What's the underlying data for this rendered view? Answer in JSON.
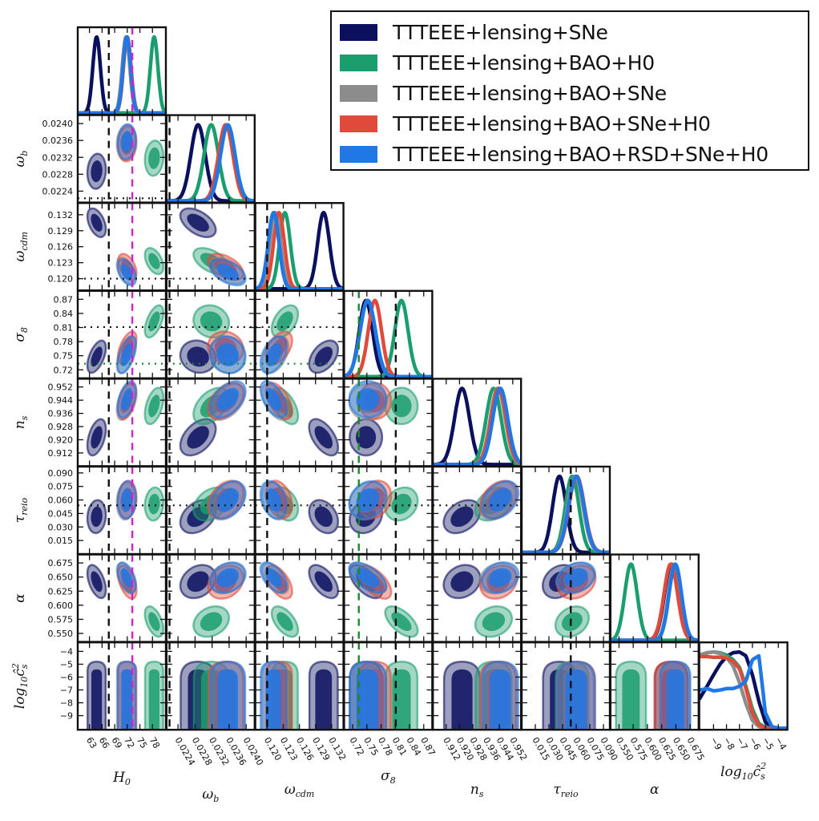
{
  "chart_data": {
    "type": "triangle-corner-plot",
    "title": "",
    "grid": false,
    "legend_position": "top-right",
    "parameters": [
      {
        "key": "H0",
        "label": "H",
        "sub": "0",
        "range": [
          60.2,
          81.2
        ],
        "ticks": [
          63,
          66,
          69,
          72,
          75,
          78
        ],
        "tick_labels": [
          "63",
          "66",
          "69",
          "72",
          "75",
          "78"
        ]
      },
      {
        "key": "omega_b",
        "label": "ω",
        "sub": "b",
        "range": [
          0.02213,
          0.0242
        ],
        "ticks": [
          0.0224,
          0.0228,
          0.0232,
          0.0236,
          0.024
        ],
        "tick_labels": [
          "0.0224",
          "0.0228",
          "0.0232",
          "0.0236",
          "0.0240"
        ]
      },
      {
        "key": "omega_cdm",
        "label": "ω",
        "sub": "cdm",
        "range": [
          0.1178,
          0.1342
        ],
        "ticks": [
          0.12,
          0.123,
          0.126,
          0.129,
          0.132
        ],
        "tick_labels": [
          "0.120",
          "0.123",
          "0.126",
          "0.129",
          "0.132"
        ]
      },
      {
        "key": "sigma8",
        "label": "σ",
        "sub": "8",
        "range": [
          0.702,
          0.888
        ],
        "ticks": [
          0.72,
          0.75,
          0.78,
          0.81,
          0.84,
          0.87
        ],
        "tick_labels": [
          "0.72",
          "0.75",
          "0.78",
          "0.81",
          "0.84",
          "0.87"
        ]
      },
      {
        "key": "n_s",
        "label": "n",
        "sub": "s",
        "range": [
          0.904,
          0.957
        ],
        "ticks": [
          0.912,
          0.92,
          0.928,
          0.936,
          0.944,
          0.952
        ],
        "tick_labels": [
          "0.912",
          "0.920",
          "0.928",
          "0.936",
          "0.944",
          "0.952"
        ]
      },
      {
        "key": "tau_reio",
        "label": "τ",
        "sub": "reio",
        "range": [
          0.0,
          0.097
        ],
        "ticks": [
          0.015,
          0.03,
          0.045,
          0.06,
          0.075,
          0.09
        ],
        "tick_labels": [
          "0.015",
          "0.030",
          "0.045",
          "0.060",
          "0.075",
          "0.090"
        ]
      },
      {
        "key": "alpha",
        "label": "α",
        "sub": "",
        "range": [
          0.535,
          0.69
        ],
        "ticks": [
          0.55,
          0.575,
          0.6,
          0.625,
          0.65,
          0.675
        ],
        "tick_labels": [
          "0.550",
          "0.575",
          "0.600",
          "0.625",
          "0.650",
          "0.675"
        ]
      },
      {
        "key": "log10_cs2",
        "label": "log",
        "sub": "10",
        "suffix": "ĉ",
        "suffix_sup": "2",
        "suffix_sub": "s",
        "range": [
          -10.1,
          -3.3
        ],
        "ticks": [
          -9,
          -8,
          -7,
          -6,
          -5,
          -4
        ],
        "tick_labels": [
          "−9",
          "−8",
          "−7",
          "−6",
          "−5",
          "−4"
        ]
      }
    ],
    "series": [
      {
        "name": "TTTEEE+lensing+SNe",
        "color": "#0a0f5e",
        "mean": {
          "H0": 64.7,
          "omega_b": 0.02287,
          "omega_cdm": 0.1305,
          "sigma8": 0.748,
          "n_s": 0.9215,
          "tau_reio": 0.0415,
          "alpha": 0.642,
          "log10_cs2": -7.0
        },
        "sigma": {
          "H0": 0.9,
          "omega_b": 0.00017,
          "omega_cdm": 0.0011,
          "sigma8": 0.014,
          "n_s": 0.0045,
          "tau_reio": 0.0075,
          "alpha": 0.012,
          "log10_cs2": 1.5
        }
      },
      {
        "name": "TTTEEE+lensing+BAO+H0",
        "color": "#1b9e6e",
        "mean": {
          "H0": 78.4,
          "omega_b": 0.02318,
          "omega_cdm": 0.1233,
          "sigma8": 0.823,
          "n_s": 0.9405,
          "tau_reio": 0.0555,
          "alpha": 0.571,
          "log10_cs2": -7.8
        },
        "sigma": {
          "H0": 0.9,
          "omega_b": 0.00017,
          "omega_cdm": 0.001,
          "sigma8": 0.014,
          "n_s": 0.0045,
          "tau_reio": 0.0075,
          "alpha": 0.011,
          "log10_cs2": 1.5
        }
      },
      {
        "name": "TTTEEE+lensing+BAO+SNe",
        "color": "#8c8c8c",
        "mean": {
          "H0": 71.7,
          "omega_b": 0.02355,
          "omega_cdm": 0.1215,
          "sigma8": 0.752,
          "n_s": 0.943,
          "tau_reio": 0.059,
          "alpha": 0.648,
          "log10_cs2": -7.3
        },
        "sigma": {
          "H0": 0.9,
          "omega_b": 0.00017,
          "omega_cdm": 0.001,
          "sigma8": 0.016,
          "n_s": 0.0045,
          "tau_reio": 0.0085,
          "alpha": 0.011,
          "log10_cs2": 1.5
        }
      },
      {
        "name": "TTTEEE+lensing+BAO+SNe+H0",
        "color": "#e04a3a",
        "mean": {
          "H0": 72.0,
          "omega_b": 0.02352,
          "omega_cdm": 0.1222,
          "sigma8": 0.767,
          "n_s": 0.9435,
          "tau_reio": 0.0605,
          "alpha": 0.641,
          "log10_cs2": -7.3
        },
        "sigma": {
          "H0": 0.9,
          "omega_b": 0.00017,
          "omega_cdm": 0.001,
          "sigma8": 0.014,
          "n_s": 0.0045,
          "tau_reio": 0.0085,
          "alpha": 0.012,
          "log10_cs2": 1.5
        }
      },
      {
        "name": "TTTEEE+lensing+BAO+RSD+SNe+H0",
        "color": "#1f78e6",
        "mean": {
          "H0": 71.9,
          "omega_b": 0.02357,
          "omega_cdm": 0.1212,
          "sigma8": 0.752,
          "n_s": 0.9445,
          "tau_reio": 0.06,
          "alpha": 0.649,
          "log10_cs2": -6.8
        },
        "sigma": {
          "H0": 0.9,
          "omega_b": 0.00017,
          "omega_cdm": 0.001,
          "sigma8": 0.016,
          "n_s": 0.0045,
          "tau_reio": 0.0085,
          "alpha": 0.011,
          "log10_cs2": 1.5
        }
      }
    ],
    "correlations": {
      "omega_b|H0": 0.1,
      "omega_cdm|H0": -0.45,
      "sigma8|H0": 0.55,
      "n_s|H0": 0.45,
      "tau_reio|H0": 0.1,
      "alpha|H0": -0.5,
      "omega_cdm|omega_b": -0.5,
      "sigma8|omega_b": -0.1,
      "n_s|omega_b": 0.45,
      "tau_reio|omega_b": 0.35,
      "alpha|omega_b": 0.25,
      "sigma8|omega_cdm": 0.45,
      "n_s|omega_cdm": -0.55,
      "tau_reio|omega_cdm": -0.3,
      "alpha|omega_cdm": -0.55,
      "n_s|sigma8": 0.0,
      "tau_reio|sigma8": 0.2,
      "alpha|sigma8": -0.6,
      "tau_reio|n_s": 0.35,
      "alpha|n_s": 0.2,
      "alpha|tau_reio": 0.25
    },
    "log10_cs2_1d_profiles": {
      "x": [
        -10.1,
        -9.5,
        -9,
        -8.5,
        -8,
        -7.5,
        -7,
        -6.5,
        -6,
        -5.5,
        -5,
        -4.5,
        -4,
        -3.5,
        -3.3
      ],
      "TTTEEE+lensing+SNe": [
        0.38,
        0.55,
        0.7,
        0.84,
        0.94,
        0.99,
        1.0,
        0.95,
        0.7,
        0.35,
        0.08,
        0.01,
        0.0,
        0.0,
        0.0
      ],
      "TTTEEE+lensing+BAO+H0": [
        0.96,
        0.99,
        1.0,
        0.99,
        0.96,
        0.9,
        0.8,
        0.55,
        0.25,
        0.06,
        0.01,
        0.0,
        0.0,
        0.0,
        0.0
      ],
      "TTTEEE+lensing+BAO+SNe": [
        0.95,
        0.99,
        1.0,
        0.98,
        0.93,
        0.82,
        0.6,
        0.32,
        0.1,
        0.02,
        0.0,
        0.0,
        0.0,
        0.0,
        0.0
      ],
      "TTTEEE+lensing+BAO+SNe+H0": [
        0.94,
        0.94,
        0.93,
        0.93,
        0.92,
        0.88,
        0.78,
        0.52,
        0.2,
        0.04,
        0.0,
        0.0,
        0.0,
        0.0,
        0.0
      ],
      "TTTEEE+lensing+BAO+RSD+SNe+H0": [
        0.5,
        0.52,
        0.49,
        0.5,
        0.52,
        0.52,
        0.55,
        0.62,
        0.9,
        0.95,
        0.2,
        0.02,
        0.0,
        0.0,
        0.0
      ]
    },
    "reference_lines": [
      {
        "param": "H0",
        "value": 67.6,
        "style": "dashed",
        "color": "#111111"
      },
      {
        "param": "H0",
        "value": 73.2,
        "style": "dashed",
        "color": "#d21fd2"
      },
      {
        "param": "omega_b",
        "value": 0.02223,
        "style": "dotted",
        "color": "#111111"
      },
      {
        "param": "omega_cdm",
        "value": 0.12,
        "style": "dotted",
        "color": "#111111"
      },
      {
        "param": "sigma8",
        "value": 0.811,
        "style": "dotted",
        "color": "#111111"
      },
      {
        "param": "sigma8",
        "value": 0.733,
        "style": "dotted",
        "color": "#1a8a2a"
      },
      {
        "param": "tau_reio",
        "value": 0.054,
        "style": "dotted",
        "color": "#111111"
      },
      {
        "param": "omega_b",
        "value": 0.0222,
        "style": "dashed-vertical",
        "color": "#111111"
      },
      {
        "param": "omega_cdm",
        "value": 0.12,
        "style": "dashed-vertical",
        "color": "#111111"
      },
      {
        "param": "sigma8",
        "value": 0.733,
        "style": "dashed-vertical",
        "color": "#1a8a2a"
      },
      {
        "param": "sigma8",
        "value": 0.811,
        "style": "dashed-vertical",
        "color": "#111111"
      },
      {
        "param": "tau_reio",
        "value": 0.054,
        "style": "dashed-vertical",
        "color": "#111111"
      }
    ]
  },
  "legend": {
    "items": [
      {
        "label": "TTTEEE+lensing+SNe",
        "color": "#0a0f5e"
      },
      {
        "label": "TTTEEE+lensing+BAO+H0",
        "color": "#1b9e6e"
      },
      {
        "label": "TTTEEE+lensing+BAO+SNe",
        "color": "#8c8c8c"
      },
      {
        "label": "TTTEEE+lensing+BAO+SNe+H0",
        "color": "#e04a3a"
      },
      {
        "label": "TTTEEE+lensing+BAO+RSD+SNe+H0",
        "color": "#1f78e6"
      }
    ]
  }
}
